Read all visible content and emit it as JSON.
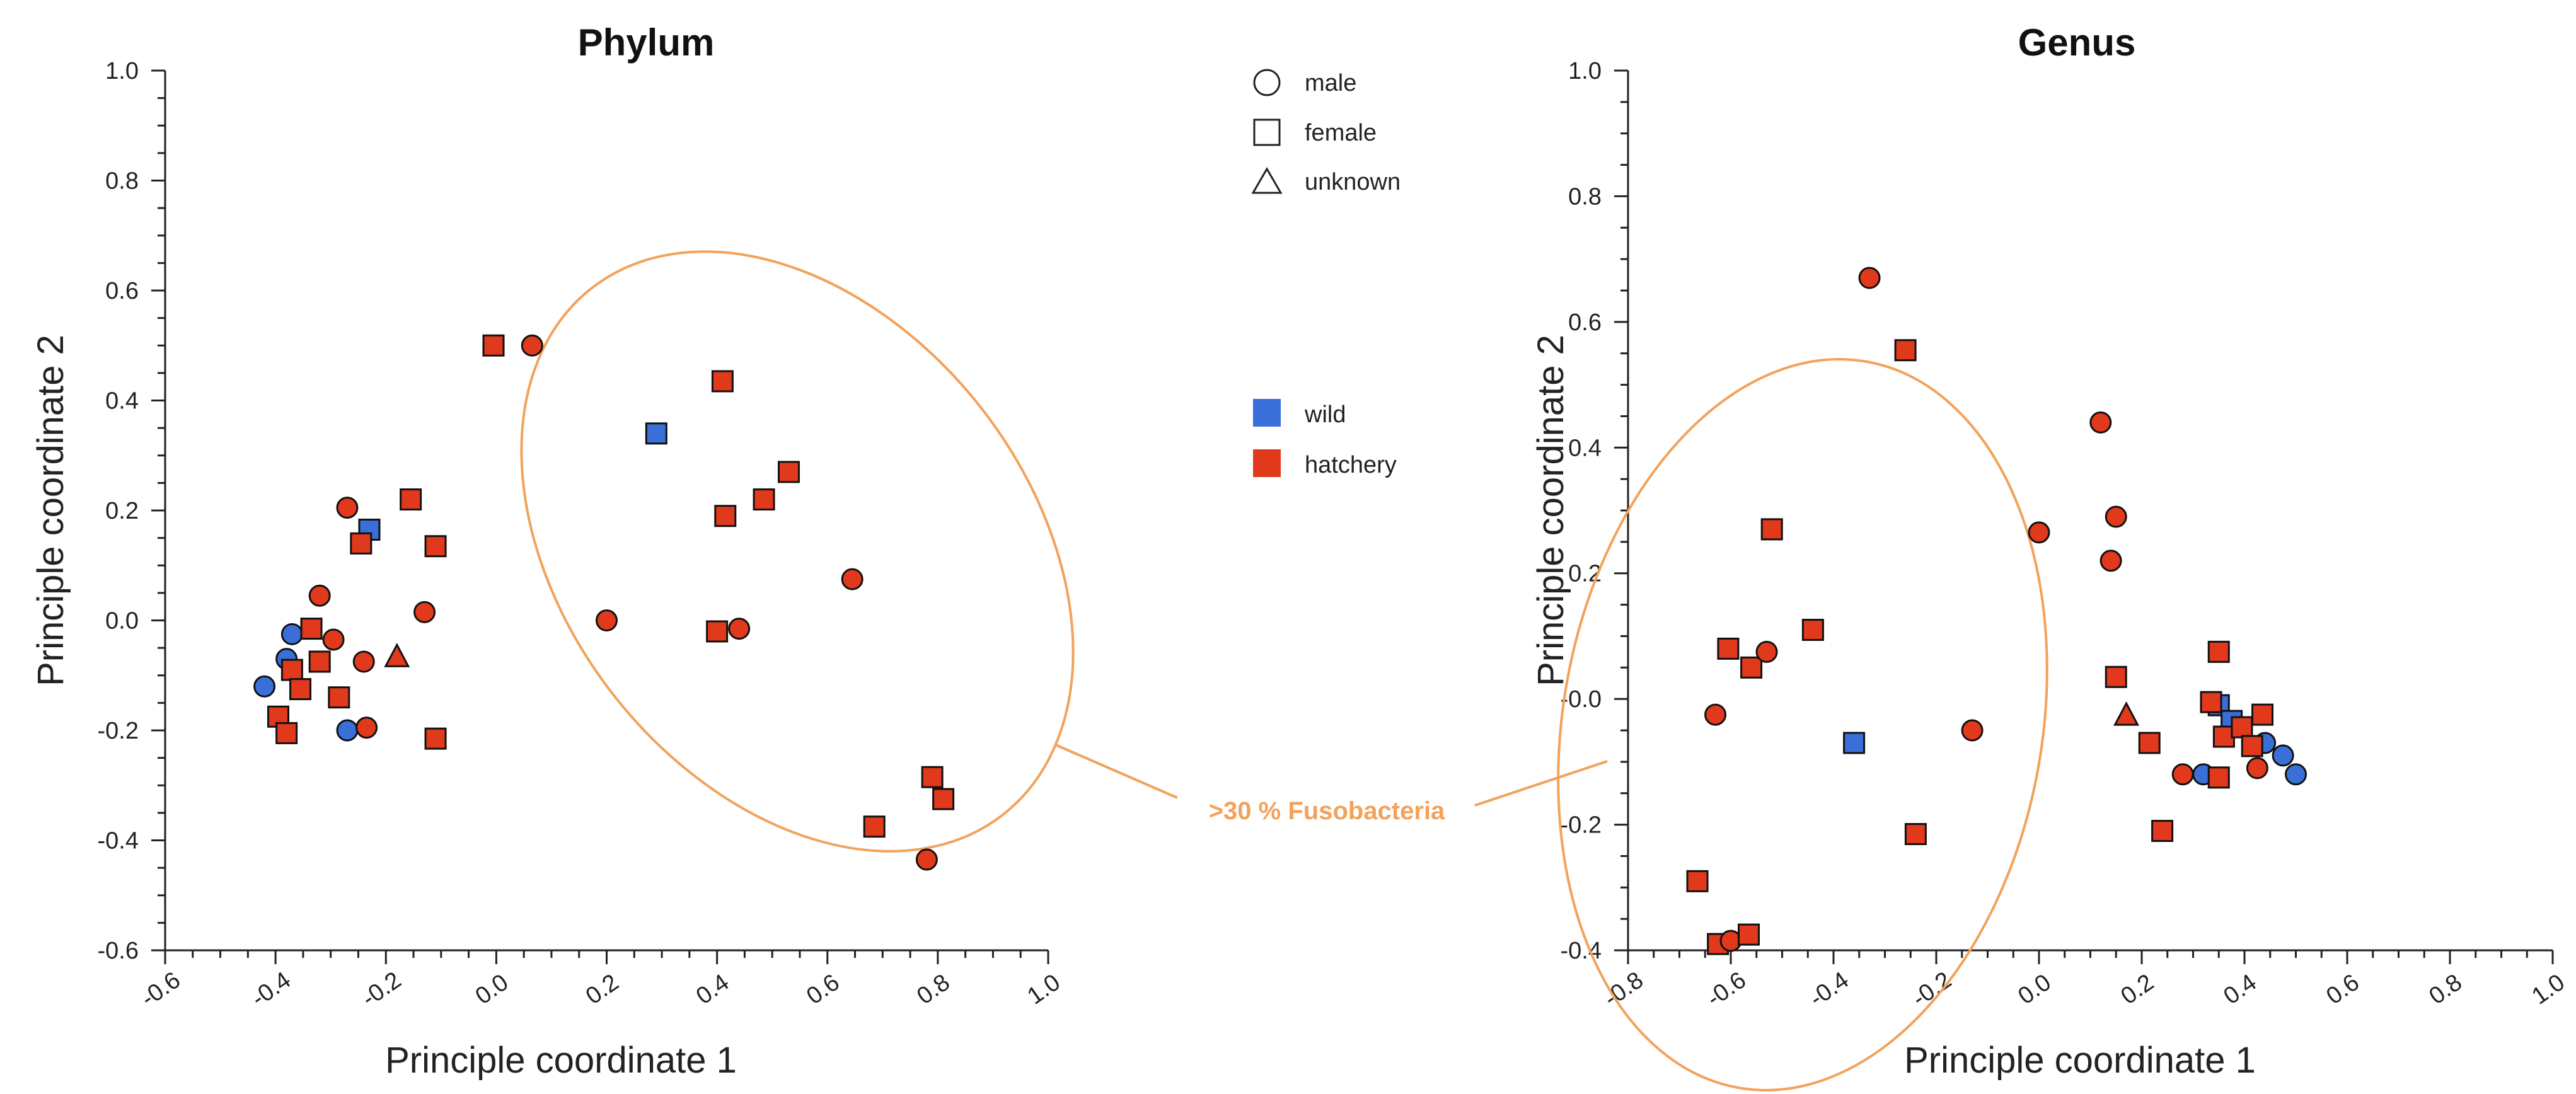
{
  "chart_data": [
    {
      "type": "scatter",
      "title": "Phylum",
      "xlabel": "Principle coordinate 1",
      "ylabel": "Principle coordinate  2",
      "xlim": [
        -0.6,
        1.0
      ],
      "ylim": [
        -0.6,
        1.0
      ],
      "xticks": [
        "-0.6",
        "-0.4",
        "-0.2",
        "0.0",
        "0.2",
        "0.4",
        "0.6",
        "0.8",
        "1.0"
      ],
      "yticks": [
        "-0.6",
        "-0.4",
        "-0.2",
        "0.0",
        "0.2",
        "0.4",
        "0.6",
        "0.8",
        "1.0"
      ],
      "grid": false,
      "points": [
        {
          "x": -0.42,
          "y": -0.12,
          "shape": "circle",
          "group": "wild"
        },
        {
          "x": -0.38,
          "y": -0.07,
          "shape": "circle",
          "group": "wild"
        },
        {
          "x": -0.37,
          "y": -0.025,
          "shape": "circle",
          "group": "wild"
        },
        {
          "x": -0.27,
          "y": -0.2,
          "shape": "circle",
          "group": "wild"
        },
        {
          "x": -0.23,
          "y": 0.165,
          "shape": "square",
          "group": "wild"
        },
        {
          "x": 0.29,
          "y": 0.34,
          "shape": "square",
          "group": "wild"
        },
        {
          "x": -0.395,
          "y": -0.175,
          "shape": "square",
          "group": "hatchery"
        },
        {
          "x": -0.38,
          "y": -0.205,
          "shape": "square",
          "group": "hatchery"
        },
        {
          "x": -0.37,
          "y": -0.09,
          "shape": "square",
          "group": "hatchery"
        },
        {
          "x": -0.355,
          "y": -0.125,
          "shape": "square",
          "group": "hatchery"
        },
        {
          "x": -0.335,
          "y": -0.015,
          "shape": "square",
          "group": "hatchery"
        },
        {
          "x": -0.32,
          "y": -0.075,
          "shape": "square",
          "group": "hatchery"
        },
        {
          "x": -0.32,
          "y": 0.045,
          "shape": "circle",
          "group": "hatchery"
        },
        {
          "x": -0.295,
          "y": -0.035,
          "shape": "circle",
          "group": "hatchery"
        },
        {
          "x": -0.285,
          "y": -0.14,
          "shape": "square",
          "group": "hatchery"
        },
        {
          "x": -0.27,
          "y": 0.205,
          "shape": "circle",
          "group": "hatchery"
        },
        {
          "x": -0.245,
          "y": 0.14,
          "shape": "square",
          "group": "hatchery"
        },
        {
          "x": -0.24,
          "y": -0.075,
          "shape": "circle",
          "group": "hatchery"
        },
        {
          "x": -0.235,
          "y": -0.195,
          "shape": "circle",
          "group": "hatchery"
        },
        {
          "x": -0.18,
          "y": -0.065,
          "shape": "triangle",
          "group": "hatchery"
        },
        {
          "x": -0.155,
          "y": 0.22,
          "shape": "square",
          "group": "hatchery"
        },
        {
          "x": -0.13,
          "y": 0.015,
          "shape": "circle",
          "group": "hatchery"
        },
        {
          "x": -0.11,
          "y": 0.135,
          "shape": "square",
          "group": "hatchery"
        },
        {
          "x": -0.11,
          "y": -0.215,
          "shape": "square",
          "group": "hatchery"
        },
        {
          "x": -0.005,
          "y": 0.5,
          "shape": "square",
          "group": "hatchery"
        },
        {
          "x": 0.065,
          "y": 0.5,
          "shape": "circle",
          "group": "hatchery"
        },
        {
          "x": 0.2,
          "y": 0.0,
          "shape": "circle",
          "group": "hatchery"
        },
        {
          "x": 0.4,
          "y": -0.02,
          "shape": "square",
          "group": "hatchery"
        },
        {
          "x": 0.41,
          "y": 0.435,
          "shape": "square",
          "group": "hatchery"
        },
        {
          "x": 0.415,
          "y": 0.19,
          "shape": "square",
          "group": "hatchery"
        },
        {
          "x": 0.44,
          "y": -0.015,
          "shape": "circle",
          "group": "hatchery"
        },
        {
          "x": 0.485,
          "y": 0.22,
          "shape": "square",
          "group": "hatchery"
        },
        {
          "x": 0.53,
          "y": 0.27,
          "shape": "square",
          "group": "hatchery"
        },
        {
          "x": 0.645,
          "y": 0.075,
          "shape": "circle",
          "group": "hatchery"
        },
        {
          "x": 0.685,
          "y": -0.375,
          "shape": "square",
          "group": "hatchery"
        },
        {
          "x": 0.78,
          "y": -0.435,
          "shape": "circle",
          "group": "hatchery"
        },
        {
          "x": 0.79,
          "y": -0.285,
          "shape": "square",
          "group": "hatchery"
        },
        {
          "x": 0.81,
          "y": -0.325,
          "shape": "square",
          "group": "hatchery"
        }
      ]
    },
    {
      "type": "scatter",
      "title": "Genus",
      "xlabel": "Principle coordinate 1",
      "ylabel": "Principle coordinate  2",
      "xlim": [
        -0.8,
        1.0
      ],
      "ylim": [
        -0.4,
        1.0
      ],
      "xticks": [
        "-0.8",
        "-0.6",
        "-0.4",
        "-0.2",
        "0.0",
        "0.2",
        "0.4",
        "0.6",
        "0.8",
        "1.0"
      ],
      "yticks": [
        "-0.4",
        "-0.2",
        "-0.0",
        "0.2",
        "0.4",
        "0.6",
        "0.8",
        "1.0"
      ],
      "grid": false,
      "points": [
        {
          "x": -0.36,
          "y": -0.07,
          "shape": "square",
          "group": "wild"
        },
        {
          "x": 0.32,
          "y": -0.12,
          "shape": "circle",
          "group": "wild"
        },
        {
          "x": 0.35,
          "y": -0.01,
          "shape": "square",
          "group": "wild"
        },
        {
          "x": 0.375,
          "y": -0.035,
          "shape": "square",
          "group": "wild"
        },
        {
          "x": 0.44,
          "y": -0.07,
          "shape": "circle",
          "group": "wild"
        },
        {
          "x": 0.475,
          "y": -0.09,
          "shape": "circle",
          "group": "wild"
        },
        {
          "x": 0.5,
          "y": -0.12,
          "shape": "circle",
          "group": "wild"
        },
        {
          "x": -0.665,
          "y": -0.29,
          "shape": "square",
          "group": "hatchery"
        },
        {
          "x": -0.63,
          "y": -0.025,
          "shape": "circle",
          "group": "hatchery"
        },
        {
          "x": -0.625,
          "y": -0.39,
          "shape": "square",
          "group": "hatchery"
        },
        {
          "x": -0.605,
          "y": 0.08,
          "shape": "square",
          "group": "hatchery"
        },
        {
          "x": -0.6,
          "y": -0.385,
          "shape": "circle",
          "group": "hatchery"
        },
        {
          "x": -0.56,
          "y": 0.05,
          "shape": "square",
          "group": "hatchery"
        },
        {
          "x": -0.565,
          "y": -0.375,
          "shape": "square",
          "group": "hatchery"
        },
        {
          "x": -0.53,
          "y": 0.075,
          "shape": "circle",
          "group": "hatchery"
        },
        {
          "x": -0.52,
          "y": 0.27,
          "shape": "square",
          "group": "hatchery"
        },
        {
          "x": -0.44,
          "y": 0.11,
          "shape": "square",
          "group": "hatchery"
        },
        {
          "x": -0.33,
          "y": 0.67,
          "shape": "circle",
          "group": "hatchery"
        },
        {
          "x": -0.26,
          "y": 0.555,
          "shape": "square",
          "group": "hatchery"
        },
        {
          "x": -0.24,
          "y": -0.215,
          "shape": "square",
          "group": "hatchery"
        },
        {
          "x": -0.13,
          "y": -0.05,
          "shape": "circle",
          "group": "hatchery"
        },
        {
          "x": 0.0,
          "y": 0.265,
          "shape": "circle",
          "group": "hatchery"
        },
        {
          "x": 0.12,
          "y": 0.44,
          "shape": "circle",
          "group": "hatchery"
        },
        {
          "x": 0.14,
          "y": 0.22,
          "shape": "circle",
          "group": "hatchery"
        },
        {
          "x": 0.15,
          "y": 0.29,
          "shape": "circle",
          "group": "hatchery"
        },
        {
          "x": 0.15,
          "y": 0.035,
          "shape": "square",
          "group": "hatchery"
        },
        {
          "x": 0.17,
          "y": -0.025,
          "shape": "triangle",
          "group": "hatchery"
        },
        {
          "x": 0.215,
          "y": -0.07,
          "shape": "square",
          "group": "hatchery"
        },
        {
          "x": 0.24,
          "y": -0.21,
          "shape": "square",
          "group": "hatchery"
        },
        {
          "x": 0.28,
          "y": -0.12,
          "shape": "circle",
          "group": "hatchery"
        },
        {
          "x": 0.335,
          "y": -0.005,
          "shape": "square",
          "group": "hatchery"
        },
        {
          "x": 0.35,
          "y": 0.075,
          "shape": "square",
          "group": "hatchery"
        },
        {
          "x": 0.35,
          "y": -0.125,
          "shape": "square",
          "group": "hatchery"
        },
        {
          "x": 0.36,
          "y": -0.06,
          "shape": "square",
          "group": "hatchery"
        },
        {
          "x": 0.395,
          "y": -0.045,
          "shape": "square",
          "group": "hatchery"
        },
        {
          "x": 0.415,
          "y": -0.075,
          "shape": "square",
          "group": "hatchery"
        },
        {
          "x": 0.425,
          "y": -0.11,
          "shape": "circle",
          "group": "hatchery"
        },
        {
          "x": 0.435,
          "y": -0.025,
          "shape": "square",
          "group": "hatchery"
        }
      ]
    }
  ],
  "legend": {
    "shapes": [
      {
        "shape": "circle",
        "label": "male"
      },
      {
        "shape": "square",
        "label": "female"
      },
      {
        "shape": "triangle",
        "label": "unknown"
      }
    ],
    "groups": [
      {
        "key": "wild",
        "label": "wild",
        "color": "#3A6FD8"
      },
      {
        "key": "hatchery",
        "label": "hatchery",
        "color": "#E0391B"
      }
    ]
  },
  "annotation": {
    "label": ">30 % Fusobacteria",
    "color": "#F2A25A"
  }
}
